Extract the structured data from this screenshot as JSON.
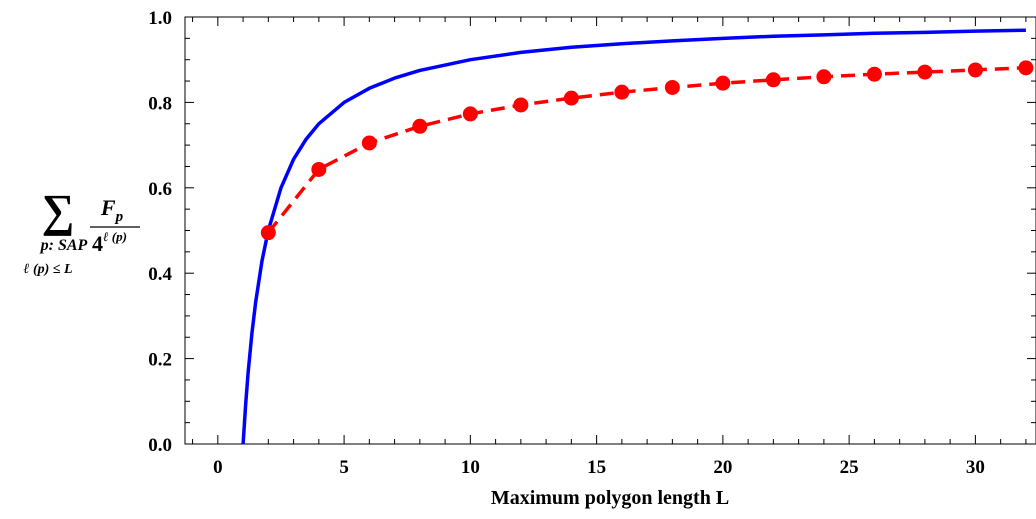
{
  "chart_data": {
    "type": "line",
    "xlabel": "Maximum polygon length L",
    "ylabel": {
      "sum_symbol": "∑",
      "sub_line1": "p: SAP",
      "sub_line2": "ℓ (p) ≤ L",
      "numerator": "F",
      "numerator_sub": "p",
      "denominator_base": "4",
      "denominator_exp": "ℓ (p)"
    },
    "xlim": [
      -1.3,
      32.4
    ],
    "ylim": [
      0.0,
      1.0
    ],
    "xticks": [
      0,
      5,
      10,
      15,
      20,
      25,
      30
    ],
    "yticks": [
      0.0,
      0.2,
      0.4,
      0.6,
      0.8,
      1.0
    ],
    "yticklabels": [
      "0.0",
      "0.2",
      "0.4",
      "0.6",
      "0.8",
      "1.0"
    ],
    "grid": false,
    "series": [
      {
        "style": "dashed-markers",
        "color": "#ff0000",
        "x": [
          2,
          4,
          6,
          8,
          10,
          12,
          14,
          16,
          18,
          20,
          22,
          24,
          26,
          28,
          30,
          32
        ],
        "y": [
          0.495,
          0.643,
          0.705,
          0.744,
          0.773,
          0.794,
          0.81,
          0.824,
          0.835,
          0.845,
          0.853,
          0.86,
          0.866,
          0.871,
          0.876,
          0.881
        ]
      },
      {
        "style": "solid",
        "color": "#0000ff",
        "x": [
          1.0,
          1.1,
          1.2,
          1.35,
          1.5,
          1.75,
          2.0,
          2.5,
          3.0,
          3.5,
          4.0,
          5.0,
          6.0,
          7.0,
          8.0,
          10.0,
          12.0,
          14.0,
          16.0,
          18.0,
          20.0,
          22.0,
          24.0,
          26.0,
          28.0,
          30.0,
          32.0
        ],
        "y": [
          0.0,
          0.091,
          0.167,
          0.259,
          0.333,
          0.429,
          0.5,
          0.6,
          0.667,
          0.714,
          0.75,
          0.8,
          0.833,
          0.857,
          0.875,
          0.9,
          0.917,
          0.929,
          0.9375,
          0.944,
          0.95,
          0.955,
          0.958,
          0.962,
          0.964,
          0.967,
          0.969
        ]
      }
    ]
  }
}
